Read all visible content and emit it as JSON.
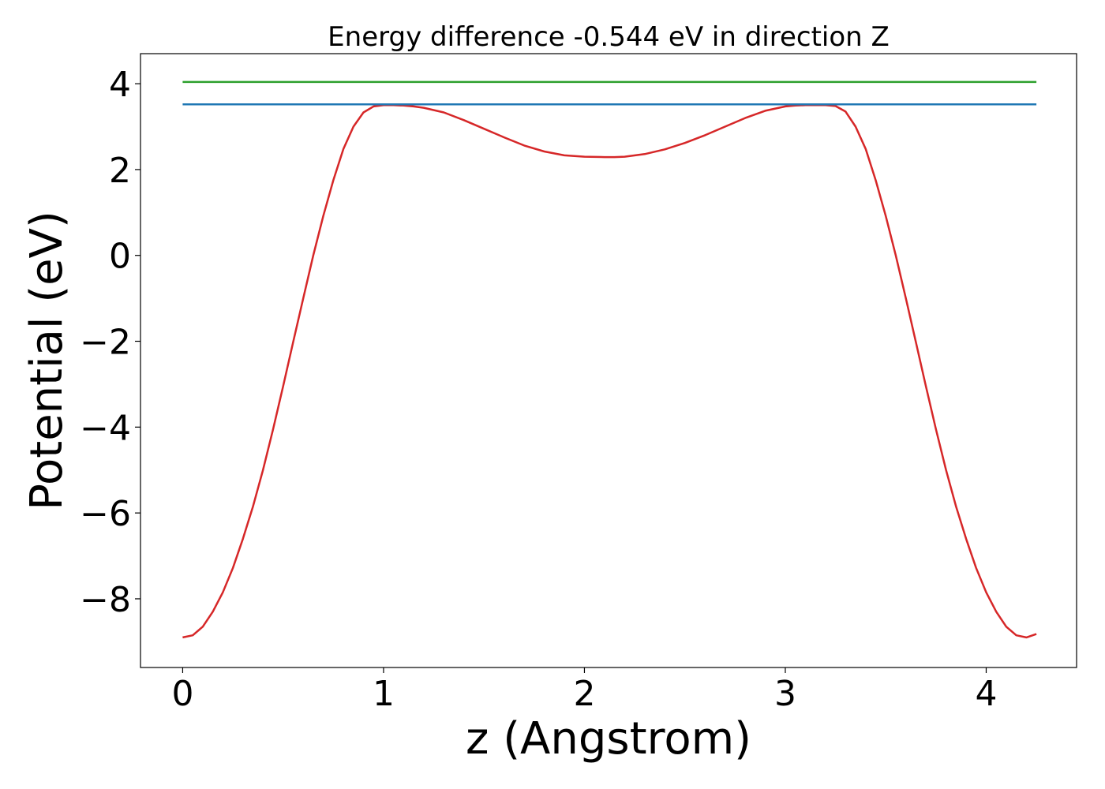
{
  "chart_data": {
    "type": "line",
    "title": "Energy difference -0.544 eV in direction Z",
    "xlabel": "z (Angstrom)",
    "ylabel": "Potential (eV)",
    "xlim": [
      -0.21,
      4.45
    ],
    "ylim": [
      -9.6,
      4.7
    ],
    "xticks": [
      0,
      1,
      2,
      3,
      4
    ],
    "yticks": [
      4,
      2,
      0,
      -2,
      -4,
      -6,
      -8
    ],
    "xtick_labels": [
      "0",
      "1",
      "2",
      "3",
      "4"
    ],
    "ytick_labels": [
      "4",
      "2",
      "0",
      "−2",
      "−4",
      "−6",
      "−8"
    ],
    "grid": false,
    "series": [
      {
        "color": "#d62728",
        "x": [
          0.0,
          0.05,
          0.1,
          0.15,
          0.2,
          0.25,
          0.3,
          0.35,
          0.4,
          0.45,
          0.5,
          0.55,
          0.6,
          0.65,
          0.7,
          0.75,
          0.8,
          0.85,
          0.9,
          0.95,
          1.0,
          1.05,
          1.1,
          1.15,
          1.2,
          1.3,
          1.4,
          1.5,
          1.6,
          1.7,
          1.8,
          1.9,
          2.0,
          2.1,
          2.15,
          2.2,
          2.3,
          2.4,
          2.5,
          2.6,
          2.7,
          2.8,
          2.9,
          3.0,
          3.05,
          3.1,
          3.15,
          3.2,
          3.25,
          3.3,
          3.35,
          3.4,
          3.45,
          3.5,
          3.55,
          3.6,
          3.65,
          3.7,
          3.75,
          3.8,
          3.85,
          3.9,
          3.95,
          4.0,
          4.05,
          4.1,
          4.15,
          4.2,
          4.25
        ],
        "y": [
          -8.9,
          -8.85,
          -8.65,
          -8.3,
          -7.85,
          -7.28,
          -6.6,
          -5.85,
          -5.0,
          -4.05,
          -3.05,
          -2.02,
          -1.0,
          0.0,
          0.92,
          1.75,
          2.48,
          3.0,
          3.33,
          3.47,
          3.5,
          3.5,
          3.49,
          3.47,
          3.44,
          3.33,
          3.15,
          2.95,
          2.75,
          2.56,
          2.42,
          2.33,
          2.3,
          2.29,
          2.29,
          2.3,
          2.36,
          2.47,
          2.62,
          2.8,
          3.0,
          3.2,
          3.37,
          3.47,
          3.49,
          3.5,
          3.5,
          3.5,
          3.48,
          3.35,
          3.0,
          2.48,
          1.75,
          0.92,
          0.0,
          -1.0,
          -2.02,
          -3.05,
          -4.05,
          -5.0,
          -5.85,
          -6.6,
          -7.28,
          -7.85,
          -8.3,
          -8.65,
          -8.85,
          -8.9,
          -8.82
        ]
      },
      {
        "color": "#2ca02c",
        "x": [
          0.0,
          4.25
        ],
        "y": [
          4.04,
          4.04
        ]
      },
      {
        "color": "#1f77b4",
        "x": [
          0.0,
          4.25
        ],
        "y": [
          3.52,
          3.52
        ]
      }
    ]
  }
}
